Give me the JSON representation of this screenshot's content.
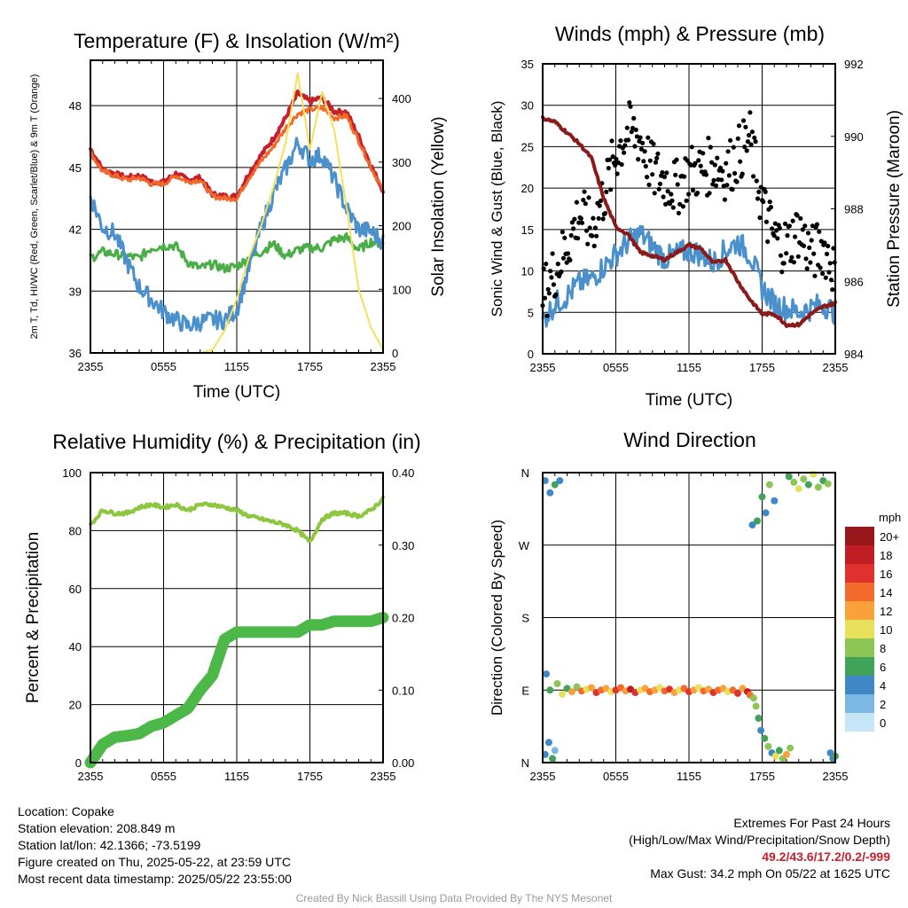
{
  "chart_data": [
    {
      "type": "line",
      "title": "Temperature (F) & Insolation (W/m²)",
      "xlabel": "Time (UTC)",
      "ylabel": "2m T, Td, HI/WC (Red, Green, Scarlet/Blue) & 9m T (Orange)",
      "ylabel_right": "Solar Insolation (Yellow)",
      "x_ticks": [
        "2355",
        "0555",
        "1155",
        "1755",
        "2355"
      ],
      "ylim": [
        36,
        50.2
      ],
      "y_ticks": [
        36,
        39,
        42,
        45,
        48
      ],
      "ylim_right": [
        0,
        460
      ],
      "y_ticks_right": [
        0,
        100,
        200,
        300,
        400
      ],
      "x_hours": [
        0,
        1,
        2,
        3,
        4,
        5,
        6,
        7,
        8,
        9,
        10,
        11,
        12,
        13,
        14,
        15,
        16,
        17,
        18,
        19,
        20,
        21,
        22,
        23,
        24
      ],
      "series": [
        {
          "color": "#c8202a",
          "axis": "left",
          "width": 4,
          "values": [
            45.9,
            44.9,
            44.7,
            44.5,
            44.6,
            44.3,
            44.3,
            44.7,
            44.4,
            44.5,
            43.7,
            43.6,
            43.6,
            44.7,
            45.6,
            46.4,
            47.4,
            48.6,
            48.2,
            48.4,
            47.7,
            47.7,
            46.5,
            45.1,
            43.9
          ]
        },
        {
          "color": "#f26a2b",
          "axis": "left",
          "width": 3,
          "values": [
            45.7,
            44.8,
            44.6,
            44.4,
            44.5,
            44.2,
            44.2,
            44.6,
            44.3,
            44.4,
            43.6,
            43.5,
            43.5,
            44.5,
            45.3,
            46.0,
            46.9,
            47.6,
            47.8,
            47.9,
            47.4,
            47.5,
            46.3,
            45.0,
            43.9
          ]
        },
        {
          "color": "#4aae47",
          "axis": "left",
          "width": 3,
          "values": [
            40.6,
            40.9,
            40.8,
            40.7,
            40.6,
            41.1,
            41.2,
            41.2,
            40.4,
            40.1,
            40.3,
            40.1,
            40.2,
            40.6,
            40.9,
            41.3,
            40.7,
            41.0,
            41.1,
            41.1,
            41.5,
            41.6,
            41.0,
            41.4,
            41.3
          ]
        },
        {
          "color": "#4a90cc",
          "axis": "left",
          "width": 3,
          "values": [
            43.6,
            42.1,
            41.8,
            40.4,
            39.2,
            38.6,
            38.0,
            37.6,
            37.3,
            37.5,
            37.6,
            37.6,
            38.1,
            40.1,
            42.1,
            43.7,
            44.9,
            46.2,
            45.4,
            45.6,
            44.4,
            43.0,
            42.0,
            41.9,
            41.4
          ]
        },
        {
          "color": "#f5e05a",
          "axis": "right",
          "width": 2,
          "values": [
            0,
            0,
            0,
            0,
            0,
            0,
            0,
            0,
            0,
            0,
            5,
            35,
            85,
            150,
            200,
            260,
            330,
            440,
            320,
            410,
            350,
            230,
            100,
            40,
            5
          ]
        }
      ]
    },
    {
      "type": "line",
      "title": "Winds (mph) & Pressure (mb)",
      "xlabel": "Time (UTC)",
      "ylabel": "Sonic Wind & Gust (Blue, Black)",
      "ylabel_right": "Station Pressure (Maroon)",
      "x_ticks": [
        "2355",
        "0555",
        "1155",
        "1755",
        "2355"
      ],
      "ylim": [
        0,
        35
      ],
      "y_ticks": [
        0,
        5,
        10,
        15,
        20,
        25,
        30,
        35
      ],
      "ylim_right": [
        984,
        992
      ],
      "y_ticks_right": [
        984,
        986,
        988,
        990,
        992
      ],
      "x_hours": [
        0,
        1,
        2,
        3,
        4,
        5,
        6,
        7,
        8,
        9,
        10,
        11,
        12,
        13,
        14,
        15,
        16,
        17,
        18,
        19,
        20,
        21,
        22,
        23,
        24
      ],
      "series": [
        {
          "color": "#4a90cc",
          "axis": "left",
          "width": 3,
          "kind": "line",
          "values": [
            4.0,
            6.0,
            7.0,
            8.5,
            9.0,
            10.5,
            12.0,
            13.5,
            14.5,
            13.0,
            11.5,
            12.0,
            12.5,
            12.0,
            11.0,
            12.5,
            13.5,
            12.0,
            8.0,
            6.0,
            5.5,
            5.0,
            5.5,
            6.0,
            5.0
          ]
        },
        {
          "color": "#8b1a1a",
          "axis": "right",
          "width": 4,
          "kind": "line",
          "values": [
            990.5,
            990.4,
            990.1,
            989.8,
            989.4,
            988.3,
            987.5,
            987.3,
            986.8,
            986.7,
            986.6,
            986.8,
            987.0,
            986.9,
            986.5,
            986.6,
            986.0,
            985.5,
            985.1,
            985.1,
            984.8,
            984.8,
            985.1,
            985.3,
            985.4
          ]
        },
        {
          "color": "#000000",
          "axis": "left",
          "kind": "scatter",
          "radius": 2.6,
          "values": [
            7,
            10,
            13,
            17,
            15,
            19,
            24,
            27,
            26,
            22,
            21,
            20,
            22,
            22,
            23,
            22,
            24,
            26,
            18,
            14,
            13,
            15,
            12,
            13,
            10
          ],
          "spread": 3.5
        }
      ]
    },
    {
      "type": "line",
      "title": "Relative Humidity (%) & Precipitation (in)",
      "xlabel": "",
      "ylabel": "Percent & Precipitation",
      "x_ticks": [
        "2355",
        "0555",
        "1155",
        "1755",
        "2355"
      ],
      "ylim": [
        0,
        100
      ],
      "y_ticks": [
        0,
        20,
        40,
        60,
        80,
        100
      ],
      "ylim_right": [
        0,
        0.4
      ],
      "y_ticks_right": [
        "0.00",
        "0.10",
        "0.20",
        "0.30",
        "0.40"
      ],
      "x_hours": [
        0,
        1,
        2,
        3,
        4,
        5,
        6,
        7,
        8,
        9,
        10,
        11,
        12,
        13,
        14,
        15,
        16,
        17,
        18,
        19,
        20,
        21,
        22,
        23,
        24
      ],
      "series": [
        {
          "color": "#8dc63f",
          "axis": "left",
          "width": 4,
          "values": [
            82,
            87,
            86,
            86,
            88,
            89,
            88,
            89,
            87,
            89,
            89,
            88,
            87,
            85,
            84,
            83,
            82,
            80,
            76,
            84,
            86,
            86,
            85,
            87,
            91
          ]
        },
        {
          "color": "#4cb847",
          "axis": "right",
          "width": 13,
          "values": [
            0.0,
            0.025,
            0.035,
            0.037,
            0.04,
            0.05,
            0.055,
            0.065,
            0.075,
            0.1,
            0.12,
            0.17,
            0.18,
            0.18,
            0.18,
            0.18,
            0.18,
            0.18,
            0.19,
            0.19,
            0.195,
            0.195,
            0.195,
            0.195,
            0.2
          ]
        }
      ]
    },
    {
      "type": "scatter",
      "title": "Wind Direction",
      "ylabel": "Direction (Colored By Speed)",
      "x_ticks": [
        "2355",
        "0555",
        "1155",
        "1755",
        "2355"
      ],
      "y_ticks": [
        "N",
        "E",
        "S",
        "W",
        "N"
      ],
      "legend_title": "mph",
      "legend_labels": [
        "0",
        "2",
        "4",
        "6",
        "8",
        "10",
        "12",
        "14",
        "16",
        "18",
        "20+"
      ],
      "legend_colors": [
        "#c6e6f7",
        "#7cb8e2",
        "#3f88c5",
        "#41a35a",
        "#8dc654",
        "#e6e05a",
        "#f9a13a",
        "#f36b2c",
        "#e0312e",
        "#c01e24",
        "#98171b"
      ],
      "points": [
        {
          "h": 0.2,
          "dir": 10,
          "spd": 3
        },
        {
          "h": 0.5,
          "dir": 25,
          "spd": 4
        },
        {
          "h": 0.8,
          "dir": 5,
          "spd": 6
        },
        {
          "h": 1.0,
          "dir": 15,
          "spd": 2
        },
        {
          "h": 0.3,
          "dir": 110,
          "spd": 3
        },
        {
          "h": 0.6,
          "dir": 90,
          "spd": 6
        },
        {
          "h": 0.2,
          "dir": 350,
          "spd": 4
        },
        {
          "h": 0.6,
          "dir": 335,
          "spd": 4
        },
        {
          "h": 1.0,
          "dir": 345,
          "spd": 6
        },
        {
          "h": 1.4,
          "dir": 350,
          "spd": 3
        },
        {
          "h": 1.2,
          "dir": 98,
          "spd": 8
        },
        {
          "h": 1.6,
          "dir": 85,
          "spd": 10
        },
        {
          "h": 2.0,
          "dir": 92,
          "spd": 6
        },
        {
          "h": 2.4,
          "dir": 88,
          "spd": 12
        },
        {
          "h": 2.8,
          "dir": 94,
          "spd": 8
        },
        {
          "h": 3.2,
          "dir": 89,
          "spd": 14
        },
        {
          "h": 3.6,
          "dir": 91,
          "spd": 10
        },
        {
          "h": 4.0,
          "dir": 93,
          "spd": 12
        },
        {
          "h": 4.4,
          "dir": 87,
          "spd": 16
        },
        {
          "h": 4.8,
          "dir": 90,
          "spd": 14
        },
        {
          "h": 5.2,
          "dir": 92,
          "spd": 12
        },
        {
          "h": 5.6,
          "dir": 88,
          "spd": 10
        },
        {
          "h": 6.0,
          "dir": 90,
          "spd": 16
        },
        {
          "h": 6.4,
          "dir": 93,
          "spd": 14
        },
        {
          "h": 6.8,
          "dir": 89,
          "spd": 12
        },
        {
          "h": 7.2,
          "dir": 91,
          "spd": 18
        },
        {
          "h": 7.6,
          "dir": 87,
          "spd": 16
        },
        {
          "h": 8.0,
          "dir": 90,
          "spd": 10
        },
        {
          "h": 8.4,
          "dir": 92,
          "spd": 12
        },
        {
          "h": 8.8,
          "dir": 88,
          "spd": 14
        },
        {
          "h": 9.2,
          "dir": 90,
          "spd": 12
        },
        {
          "h": 9.6,
          "dir": 93,
          "spd": 10
        },
        {
          "h": 10.0,
          "dir": 89,
          "spd": 14
        },
        {
          "h": 10.4,
          "dir": 91,
          "spd": 16
        },
        {
          "h": 10.8,
          "dir": 87,
          "spd": 12
        },
        {
          "h": 11.2,
          "dir": 90,
          "spd": 10
        },
        {
          "h": 11.6,
          "dir": 92,
          "spd": 14
        },
        {
          "h": 12.0,
          "dir": 88,
          "spd": 16
        },
        {
          "h": 12.4,
          "dir": 90,
          "spd": 12
        },
        {
          "h": 12.8,
          "dir": 93,
          "spd": 10
        },
        {
          "h": 13.2,
          "dir": 89,
          "spd": 14
        },
        {
          "h": 13.6,
          "dir": 91,
          "spd": 12
        },
        {
          "h": 14.0,
          "dir": 87,
          "spd": 16
        },
        {
          "h": 14.4,
          "dir": 90,
          "spd": 14
        },
        {
          "h": 14.8,
          "dir": 92,
          "spd": 12
        },
        {
          "h": 15.2,
          "dir": 88,
          "spd": 10
        },
        {
          "h": 15.6,
          "dir": 90,
          "spd": 14
        },
        {
          "h": 16.0,
          "dir": 86,
          "spd": 16
        },
        {
          "h": 16.4,
          "dir": 92,
          "spd": 12
        },
        {
          "h": 16.8,
          "dir": 88,
          "spd": 18
        },
        {
          "h": 17.0,
          "dir": 84,
          "spd": 14
        },
        {
          "h": 17.3,
          "dir": 80,
          "spd": 8
        },
        {
          "h": 17.5,
          "dir": 70,
          "spd": 8
        },
        {
          "h": 17.7,
          "dir": 55,
          "spd": 6
        },
        {
          "h": 17.9,
          "dir": 40,
          "spd": 4
        },
        {
          "h": 18.2,
          "dir": 30,
          "spd": 6
        },
        {
          "h": 18.5,
          "dir": 20,
          "spd": 8
        },
        {
          "h": 18.8,
          "dir": 12,
          "spd": 4
        },
        {
          "h": 19.1,
          "dir": 8,
          "spd": 10
        },
        {
          "h": 19.4,
          "dir": 15,
          "spd": 6
        },
        {
          "h": 19.7,
          "dir": 5,
          "spd": 8
        },
        {
          "h": 20.0,
          "dir": 10,
          "spd": 12
        },
        {
          "h": 20.3,
          "dir": 18,
          "spd": 8
        },
        {
          "h": 17.2,
          "dir": 295,
          "spd": 4
        },
        {
          "h": 17.6,
          "dir": 300,
          "spd": 6
        },
        {
          "h": 18.0,
          "dir": 330,
          "spd": 6
        },
        {
          "h": 18.3,
          "dir": 310,
          "spd": 4
        },
        {
          "h": 18.6,
          "dir": 345,
          "spd": 8
        },
        {
          "h": 19.0,
          "dir": 325,
          "spd": 4
        },
        {
          "h": 20.2,
          "dir": 355,
          "spd": 6
        },
        {
          "h": 20.6,
          "dir": 348,
          "spd": 8
        },
        {
          "h": 21.0,
          "dir": 340,
          "spd": 10
        },
        {
          "h": 21.4,
          "dir": 352,
          "spd": 8
        },
        {
          "h": 21.8,
          "dir": 345,
          "spd": 6
        },
        {
          "h": 22.2,
          "dir": 358,
          "spd": 10
        },
        {
          "h": 22.6,
          "dir": 342,
          "spd": 8
        },
        {
          "h": 23.0,
          "dir": 350,
          "spd": 6
        },
        {
          "h": 23.4,
          "dir": 346,
          "spd": 8
        },
        {
          "h": 23.6,
          "dir": 12,
          "spd": 4
        },
        {
          "h": 23.8,
          "dir": 5,
          "spd": 3
        },
        {
          "h": 24.0,
          "dir": 8,
          "spd": 6
        }
      ]
    }
  ],
  "info_left": [
    "Location: Copake",
    "Station elevation: 208.849 m",
    "Station lat/lon: 42.1366; -73.5199",
    "Figure created on Thu, 2025-05-22, at 23:59 UTC",
    "Most recent data timestamp: 2025/05/22 23:55:00"
  ],
  "info_right": {
    "title": "Extremes For Past 24 Hours",
    "subtitle": "(High/Low/Max Wind/Precipitation/Snow Depth)",
    "values": "49.2/43.6/17.2/0.2/-999",
    "max_gust": "Max Gust: 34.2 mph On 05/22 at 1625 UTC"
  },
  "footer": "Created By Nick Bassill Using Data Provided By The NYS Mesonet"
}
